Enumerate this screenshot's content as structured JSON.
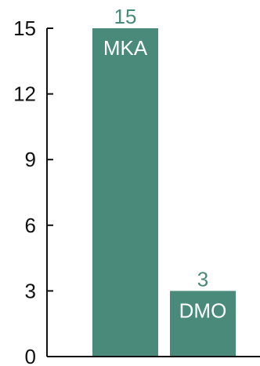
{
  "chart_data": {
    "type": "bar",
    "categories": [
      "MKA",
      "DMO"
    ],
    "values": [
      15,
      3
    ],
    "title": "",
    "xlabel": "",
    "ylabel": "",
    "ylim": [
      0,
      15
    ],
    "yticks": [
      0,
      3,
      6,
      9,
      12,
      15
    ],
    "bar_color": "#4a8a7a",
    "value_label_color": "#4a8a7a",
    "category_label_color": "#ffffff",
    "axis_color": "#111111",
    "grid": false,
    "legend": "none",
    "category_label_position": "inside-top"
  }
}
